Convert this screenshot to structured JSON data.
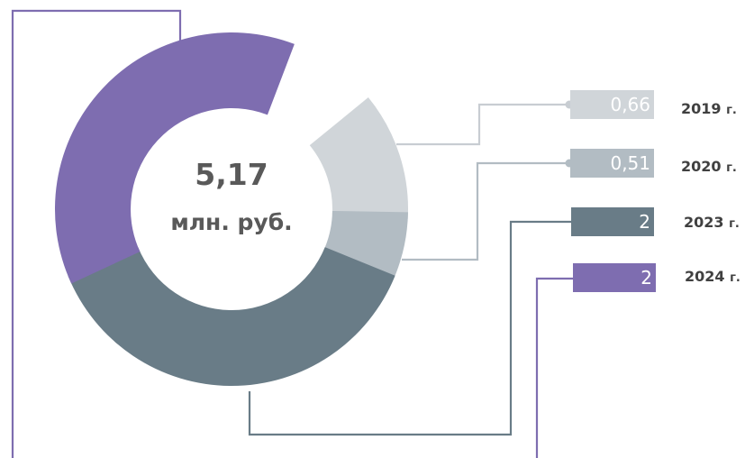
{
  "chart_data": {
    "type": "donut",
    "center": {
      "value": "5,17",
      "unit": "млн. руб."
    },
    "slices": [
      {
        "year": "2019",
        "suffix": "г.",
        "value": 0.66,
        "value_label": "0,66",
        "color": "#d0d5d9"
      },
      {
        "year": "2020",
        "suffix": "г.",
        "value": 0.51,
        "value_label": "0,51",
        "color": "#b2bcc3"
      },
      {
        "year": "2023",
        "suffix": "г.",
        "value": 2,
        "value_label": "2",
        "color": "#697c87"
      },
      {
        "year": "2024",
        "suffix": "г.",
        "value": 2,
        "value_label": "2",
        "color": "#7e6db0"
      }
    ]
  }
}
